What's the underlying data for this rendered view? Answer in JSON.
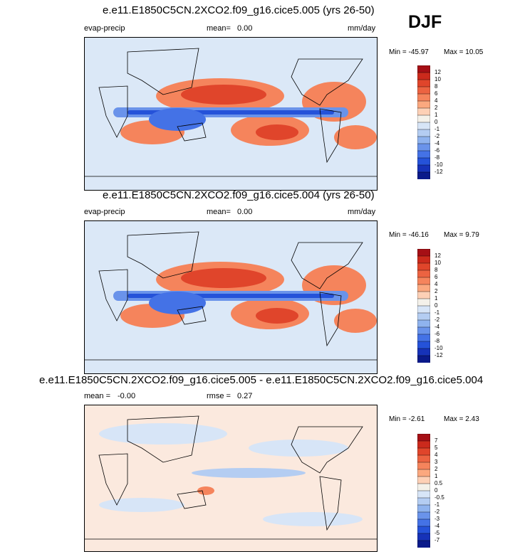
{
  "season": "DJF",
  "colors": {
    "ocean_neutral": "#f3f0e6",
    "land_bg": "#dbe8f7",
    "coast": "#000000"
  },
  "chart_data": [
    {
      "type": "heatmap",
      "title": "e.e11.E1850C5CN.2XCO2.f09_g16.cice5.005 (yrs 26-50)",
      "variable_label": "evap-precip",
      "stat_label": "mean=",
      "stat_value": "0.00",
      "units": "mm/day",
      "min_text": "Min = -45.97",
      "max_text": "Max =  10.05",
      "min": -45.97,
      "max": 10.05,
      "levels": [
        "12",
        "10",
        "8",
        "6",
        "4",
        "2",
        "1",
        "0",
        "-1",
        "-2",
        "-4",
        "-6",
        "-8",
        "-10",
        "-12"
      ],
      "colors": [
        "#a50f15",
        "#cb2a1c",
        "#e0452b",
        "#ec6341",
        "#f5845c",
        "#fba87f",
        "#fdd0b6",
        "#f4f1ea",
        "#d7e5f7",
        "#b4cdf2",
        "#8fb3ee",
        "#6a93ea",
        "#4472e6",
        "#2552d9",
        "#1632b8",
        "#0a1a8a"
      ]
    },
    {
      "type": "heatmap",
      "title": "e.e11.E1850C5CN.2XCO2.f09_g16.cice5.004 (yrs 26-50)",
      "variable_label": "evap-precip",
      "stat_label": "mean=",
      "stat_value": "0.00",
      "units": "mm/day",
      "min_text": "Min = -46.16",
      "max_text": "Max =   9.79",
      "min": -46.16,
      "max": 9.79,
      "levels": [
        "12",
        "10",
        "8",
        "6",
        "4",
        "2",
        "1",
        "0",
        "-1",
        "-2",
        "-4",
        "-6",
        "-8",
        "-10",
        "-12"
      ],
      "colors": [
        "#a50f15",
        "#cb2a1c",
        "#e0452b",
        "#ec6341",
        "#f5845c",
        "#fba87f",
        "#fdd0b6",
        "#f4f1ea",
        "#d7e5f7",
        "#b4cdf2",
        "#8fb3ee",
        "#6a93ea",
        "#4472e6",
        "#2552d9",
        "#1632b8",
        "#0a1a8a"
      ]
    },
    {
      "type": "heatmap",
      "title": "e.e11.E1850C5CN.2XCO2.f09_g16.cice5.005 - e.e11.E1850C5CN.2XCO2.f09_g16.cice5.004",
      "stat_label": "mean =",
      "stat_value": "-0.00",
      "stat2_label": "rmse =",
      "stat2_value": "0.27",
      "min_text": "Min =  -2.61",
      "max_text": "Max =   2.43",
      "min": -2.61,
      "max": 2.43,
      "levels": [
        "7",
        "5",
        "4",
        "3",
        "2",
        "1",
        "0.5",
        "0",
        "-0.5",
        "-1",
        "-2",
        "-3",
        "-4",
        "-5",
        "-7"
      ],
      "colors": [
        "#a50f15",
        "#cb2a1c",
        "#e0452b",
        "#ec6341",
        "#f5845c",
        "#fba87f",
        "#fdd0b6",
        "#f4f1ea",
        "#d7e5f7",
        "#b4cdf2",
        "#8fb3ee",
        "#6a93ea",
        "#4472e6",
        "#2552d9",
        "#1632b8",
        "#0a1a8a"
      ]
    }
  ]
}
